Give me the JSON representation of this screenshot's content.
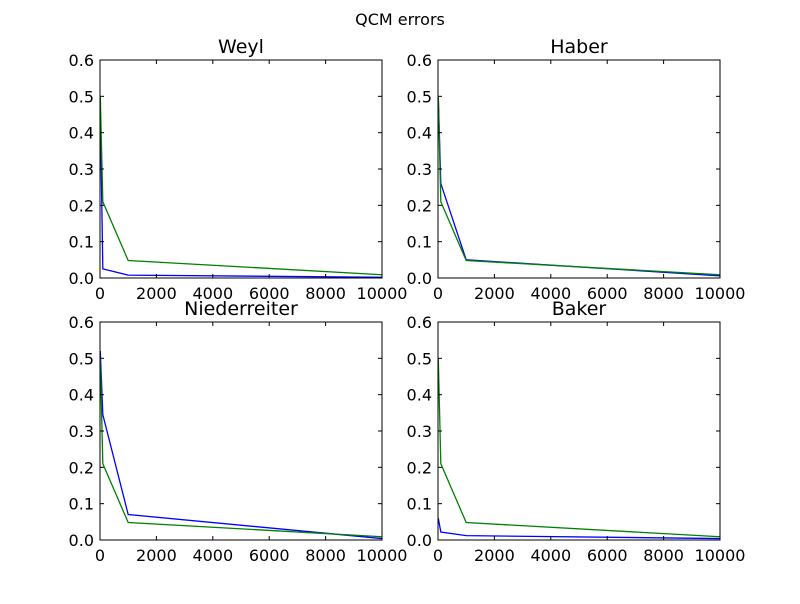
{
  "figure": {
    "title": "QCM errors"
  },
  "chart_data": [
    {
      "type": "line",
      "title": "Weyl",
      "xlim": [
        0,
        10000
      ],
      "ylim": [
        0,
        0.6
      ],
      "xticks": [
        0,
        2000,
        4000,
        6000,
        8000,
        10000
      ],
      "yticks": [
        "0.0",
        "0.1",
        "0.2",
        "0.3",
        "0.4",
        "0.5",
        "0.6"
      ],
      "grid": false,
      "series": [
        {
          "color": "#0000ff",
          "x": [
            10,
            100,
            1000,
            10000
          ],
          "y": [
            0.47,
            0.025,
            0.008,
            0.002
          ]
        },
        {
          "color": "#008000",
          "x": [
            10,
            100,
            1000,
            10000
          ],
          "y": [
            0.5,
            0.21,
            0.048,
            0.009
          ]
        }
      ]
    },
    {
      "type": "line",
      "title": "Haber",
      "xlim": [
        0,
        10000
      ],
      "ylim": [
        0,
        0.6
      ],
      "xticks": [
        0,
        2000,
        4000,
        6000,
        8000,
        10000
      ],
      "yticks": [
        "0.0",
        "0.1",
        "0.2",
        "0.3",
        "0.4",
        "0.5",
        "0.6"
      ],
      "grid": false,
      "series": [
        {
          "color": "#0000ff",
          "x": [
            10,
            100,
            1000,
            10000
          ],
          "y": [
            0.5,
            0.26,
            0.05,
            0.006
          ]
        },
        {
          "color": "#008000",
          "x": [
            10,
            100,
            1000,
            10000
          ],
          "y": [
            0.5,
            0.21,
            0.048,
            0.009
          ]
        }
      ]
    },
    {
      "type": "line",
      "title": "Niederreiter",
      "xlim": [
        0,
        10000
      ],
      "ylim": [
        0,
        0.6
      ],
      "xticks": [
        0,
        2000,
        4000,
        6000,
        8000,
        10000
      ],
      "yticks": [
        "0.0",
        "0.1",
        "0.2",
        "0.3",
        "0.4",
        "0.5",
        "0.6"
      ],
      "grid": false,
      "series": [
        {
          "color": "#0000ff",
          "x": [
            10,
            100,
            1000,
            10000
          ],
          "y": [
            0.52,
            0.345,
            0.07,
            0.004
          ]
        },
        {
          "color": "#008000",
          "x": [
            10,
            100,
            1000,
            10000
          ],
          "y": [
            0.5,
            0.21,
            0.048,
            0.009
          ]
        }
      ]
    },
    {
      "type": "line",
      "title": "Baker",
      "xlim": [
        0,
        10000
      ],
      "ylim": [
        0,
        0.6
      ],
      "xticks": [
        0,
        2000,
        4000,
        6000,
        8000,
        10000
      ],
      "yticks": [
        "0.0",
        "0.1",
        "0.2",
        "0.3",
        "0.4",
        "0.5",
        "0.6"
      ],
      "grid": false,
      "series": [
        {
          "color": "#0000ff",
          "x": [
            10,
            100,
            1000,
            10000
          ],
          "y": [
            0.06,
            0.022,
            0.012,
            0.004
          ]
        },
        {
          "color": "#008000",
          "x": [
            10,
            100,
            1000,
            10000
          ],
          "y": [
            0.5,
            0.21,
            0.048,
            0.009
          ]
        }
      ]
    }
  ]
}
